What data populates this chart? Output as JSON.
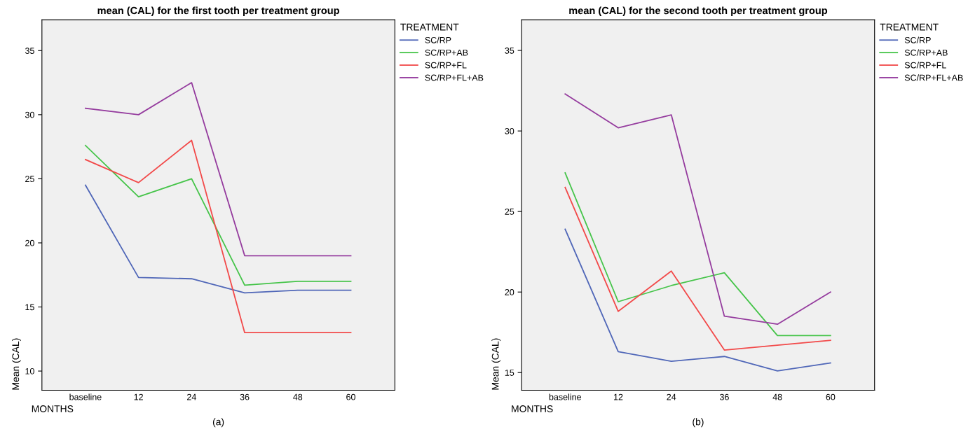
{
  "chart_data": [
    {
      "type": "line",
      "title": "mean (CAL) for the first tooth per treatment group",
      "xlabel": "MONTHS",
      "ylabel": "Mean (CAL)",
      "legend_title": "TREATMENT",
      "legend": "right",
      "grid": false,
      "marker": "none",
      "line_style": "solid",
      "categories": [
        "baseline",
        "12",
        "24",
        "36",
        "48",
        "60"
      ],
      "ylim": [
        8.5,
        37.4
      ],
      "yticks": [
        10,
        15,
        20,
        25,
        30,
        35
      ],
      "series": [
        {
          "name": "SC/RP",
          "color": "#5067b8",
          "values": [
            24.5,
            17.3,
            17.2,
            16.1,
            16.3,
            16.3
          ]
        },
        {
          "name": "SC/RP+AB",
          "color": "#45c449",
          "values": [
            27.6,
            23.6,
            25.0,
            16.7,
            17.0,
            17.0
          ]
        },
        {
          "name": "SC/RP+FL",
          "color": "#f24a4a",
          "values": [
            26.5,
            24.7,
            28.0,
            13.0,
            13.0,
            13.0
          ]
        },
        {
          "name": "SC/RP+FL+AB",
          "color": "#953c9e",
          "values": [
            30.5,
            30.0,
            32.5,
            19.0,
            19.0,
            19.0
          ]
        }
      ],
      "annotations": [
        "(a)"
      ]
    },
    {
      "type": "line",
      "title": "mean (CAL) for the second tooth per treatment group",
      "xlabel": "MONTHS",
      "ylabel": "Mean (CAL)",
      "legend_title": "TREATMENT",
      "legend": "right",
      "grid": false,
      "marker": "none",
      "line_style": "solid",
      "categories": [
        "baseline",
        "12",
        "24",
        "36",
        "48",
        "60"
      ],
      "ylim": [
        13.9,
        36.9
      ],
      "yticks": [
        15,
        20,
        25,
        30,
        35
      ],
      "series": [
        {
          "name": "SC/RP",
          "color": "#5067b8",
          "values": [
            23.9,
            16.3,
            15.7,
            16.0,
            15.1,
            15.6
          ]
        },
        {
          "name": "SC/RP+AB",
          "color": "#45c449",
          "values": [
            27.4,
            19.4,
            20.4,
            21.2,
            17.3,
            17.3
          ]
        },
        {
          "name": "SC/RP+FL",
          "color": "#f24a4a",
          "values": [
            26.5,
            18.8,
            21.3,
            16.4,
            16.7,
            17.0
          ]
        },
        {
          "name": "SC/RP+FL+AB",
          "color": "#953c9e",
          "values": [
            32.3,
            30.2,
            31.0,
            18.5,
            18.0,
            20.0
          ]
        }
      ],
      "annotations": [
        "(b)"
      ]
    }
  ]
}
